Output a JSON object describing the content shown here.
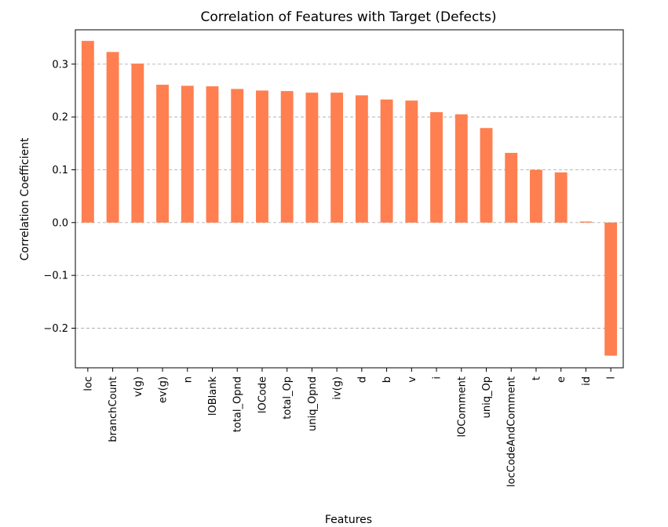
{
  "chart_data": {
    "type": "bar",
    "title": "Correlation of Features with Target (Defects)",
    "xlabel": "Features",
    "ylabel": "Correlation Coefficient",
    "categories": [
      "loc",
      "branchCount",
      "v(g)",
      "ev(g)",
      "n",
      "lOBlank",
      "total_Opnd",
      "lOCode",
      "total_Op",
      "uniq_Opnd",
      "iv(g)",
      "d",
      "b",
      "v",
      "i",
      "lOComment",
      "uniq_Op",
      "locCodeAndComment",
      "t",
      "e",
      "id",
      "l"
    ],
    "values": [
      0.344,
      0.323,
      0.301,
      0.261,
      0.259,
      0.258,
      0.253,
      0.25,
      0.249,
      0.246,
      0.246,
      0.241,
      0.233,
      0.231,
      0.209,
      0.205,
      0.179,
      0.132,
      0.1,
      0.095,
      0.002,
      -0.252
    ],
    "ylim": [
      -0.275,
      0.365
    ],
    "yticks": [
      -0.2,
      -0.1,
      0.0,
      0.1,
      0.2,
      0.3
    ],
    "ytick_labels": [
      "−0.2",
      "−0.1",
      "0.0",
      "0.1",
      "0.2",
      "0.3"
    ],
    "grid": "y-dashed",
    "bar_color": "#ff7f50"
  }
}
